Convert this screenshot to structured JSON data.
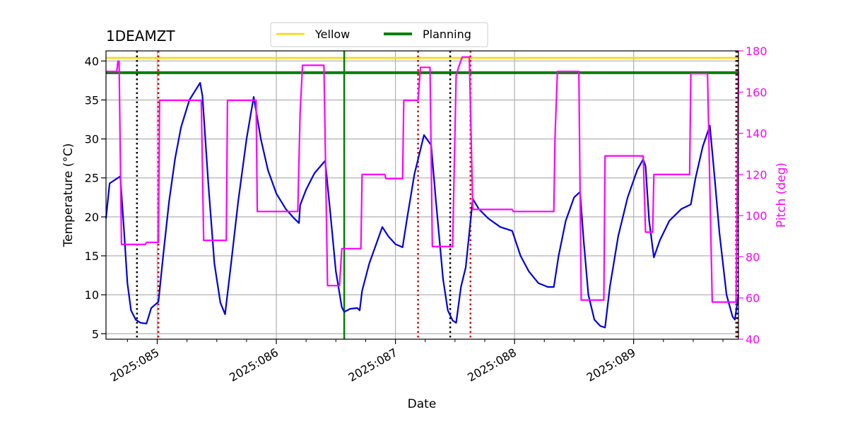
{
  "chart_data": {
    "type": "line",
    "title": "1DEAMZT",
    "xlabel": "Date",
    "ylabel": "Temperature ($^\\circ$C)",
    "ylabel_display": "Temperature (°C)",
    "y2label": "Pitch (deg)",
    "xlim": [
      84.57,
      89.88
    ],
    "ylim": [
      4.3,
      41.3
    ],
    "y2lim": [
      40,
      180
    ],
    "grid": true,
    "legend_position": "top-center",
    "x_ticks": [
      {
        "value": 85,
        "label": "2025:085"
      },
      {
        "value": 86,
        "label": "2025:086"
      },
      {
        "value": 87,
        "label": "2025:087"
      },
      {
        "value": 88,
        "label": "2025:088"
      },
      {
        "value": 89,
        "label": "2025:089"
      }
    ],
    "x_minor_ticks": [
      84.75,
      85.25,
      85.5,
      85.75,
      86.25,
      86.5,
      86.75,
      87.25,
      87.5,
      87.75,
      88.25,
      88.5,
      88.75,
      89.25,
      89.5,
      89.75
    ],
    "y_ticks": [
      5,
      10,
      15,
      20,
      25,
      30,
      35,
      40
    ],
    "y2_ticks": [
      40,
      60,
      80,
      100,
      120,
      140,
      160,
      180
    ],
    "legend": [
      {
        "name": "Yellow",
        "color": "#ffd700"
      },
      {
        "name": "Planning",
        "color": "#008000"
      }
    ],
    "hlines": [
      {
        "name": "Yellow",
        "y": 40.4,
        "color": "#ffd700"
      },
      {
        "name": "Planning",
        "y": 38.5,
        "color": "#008000"
      }
    ],
    "vlines": [
      {
        "x": 84.83,
        "color": "#000000",
        "style": "dotted"
      },
      {
        "x": 85.01,
        "color": "#d00000",
        "style": "dotted"
      },
      {
        "x": 86.57,
        "color": "#008000",
        "style": "solid"
      },
      {
        "x": 87.19,
        "color": "#d00000",
        "style": "dotted"
      },
      {
        "x": 87.46,
        "color": "#000000",
        "style": "dotted"
      },
      {
        "x": 87.63,
        "color": "#d00000",
        "style": "dotted"
      },
      {
        "x": 89.86,
        "color": "#d00000",
        "style": "dotted"
      },
      {
        "x": 89.87,
        "color": "#000000",
        "style": "dotted"
      }
    ],
    "series": [
      {
        "axis": "left",
        "color": "#0000dd",
        "points": [
          [
            84.57,
            19.8
          ],
          [
            84.6,
            24.3
          ],
          [
            84.67,
            25.0
          ],
          [
            84.69,
            25.2
          ],
          [
            84.72,
            18.5
          ],
          [
            84.75,
            11.5
          ],
          [
            84.78,
            8.0
          ],
          [
            84.82,
            6.8
          ],
          [
            84.86,
            6.4
          ],
          [
            84.91,
            6.3
          ],
          [
            84.95,
            8.3
          ],
          [
            85.01,
            9.1
          ],
          [
            85.05,
            15.0
          ],
          [
            85.1,
            22.0
          ],
          [
            85.15,
            27.5
          ],
          [
            85.2,
            31.5
          ],
          [
            85.27,
            35.0
          ],
          [
            85.36,
            37.2
          ],
          [
            85.38,
            35.5
          ],
          [
            85.43,
            24.0
          ],
          [
            85.48,
            14.0
          ],
          [
            85.53,
            9.0
          ],
          [
            85.57,
            7.5
          ],
          [
            85.62,
            14.0
          ],
          [
            85.68,
            22.0
          ],
          [
            85.75,
            30.0
          ],
          [
            85.81,
            35.4
          ],
          [
            85.87,
            30.0
          ],
          [
            85.93,
            26.0
          ],
          [
            86.0,
            23.0
          ],
          [
            86.08,
            21.0
          ],
          [
            86.15,
            19.8
          ],
          [
            86.19,
            19.2
          ],
          [
            86.2,
            21.5
          ],
          [
            86.25,
            23.5
          ],
          [
            86.32,
            25.6
          ],
          [
            86.41,
            27.2
          ],
          [
            86.45,
            21.0
          ],
          [
            86.5,
            13.0
          ],
          [
            86.55,
            8.4
          ],
          [
            86.57,
            7.8
          ],
          [
            86.62,
            8.2
          ],
          [
            86.68,
            8.3
          ],
          [
            86.7,
            8.0
          ],
          [
            86.72,
            10.5
          ],
          [
            86.78,
            14.0
          ],
          [
            86.85,
            17.0
          ],
          [
            86.89,
            18.7
          ],
          [
            86.94,
            17.5
          ],
          [
            87.0,
            16.5
          ],
          [
            87.06,
            16.1
          ],
          [
            87.1,
            20.0
          ],
          [
            87.16,
            25.5
          ],
          [
            87.24,
            30.5
          ],
          [
            87.3,
            29.2
          ],
          [
            87.34,
            22.0
          ],
          [
            87.4,
            12.0
          ],
          [
            87.44,
            8.0
          ],
          [
            87.48,
            6.7
          ],
          [
            87.51,
            6.4
          ],
          [
            87.55,
            11.0
          ],
          [
            87.59,
            13.5
          ],
          [
            87.65,
            22.3
          ],
          [
            87.7,
            21.0
          ],
          [
            87.78,
            19.8
          ],
          [
            87.88,
            18.7
          ],
          [
            87.98,
            18.2
          ],
          [
            88.05,
            15.0
          ],
          [
            88.12,
            13.0
          ],
          [
            88.2,
            11.5
          ],
          [
            88.28,
            11.0
          ],
          [
            88.33,
            11.0
          ],
          [
            88.37,
            15.0
          ],
          [
            88.43,
            19.5
          ],
          [
            88.5,
            22.5
          ],
          [
            88.55,
            23.2
          ],
          [
            88.58,
            17.0
          ],
          [
            88.62,
            10.0
          ],
          [
            88.67,
            6.8
          ],
          [
            88.72,
            6.0
          ],
          [
            88.76,
            5.8
          ],
          [
            88.8,
            11.0
          ],
          [
            88.87,
            17.5
          ],
          [
            88.95,
            22.5
          ],
          [
            89.03,
            26.0
          ],
          [
            89.08,
            27.4
          ],
          [
            89.1,
            26.5
          ],
          [
            89.13,
            19.5
          ],
          [
            89.17,
            14.8
          ],
          [
            89.22,
            17.0
          ],
          [
            89.3,
            19.5
          ],
          [
            89.4,
            21.0
          ],
          [
            89.48,
            21.6
          ],
          [
            89.52,
            25.0
          ],
          [
            89.58,
            29.0
          ],
          [
            89.64,
            31.7
          ],
          [
            89.68,
            25.0
          ],
          [
            89.72,
            18.0
          ],
          [
            89.78,
            10.0
          ],
          [
            89.83,
            7.2
          ],
          [
            89.85,
            6.8
          ],
          [
            89.88,
            10.0
          ]
        ]
      },
      {
        "axis": "right",
        "color": "#ff00ff",
        "points": [
          [
            84.57,
            170.0
          ],
          [
            84.66,
            170.0
          ],
          [
            84.67,
            175.0
          ],
          [
            84.68,
            175.0
          ],
          [
            84.7,
            86.0
          ],
          [
            84.9,
            86.0
          ],
          [
            84.91,
            87.0
          ],
          [
            85.01,
            87.0
          ],
          [
            85.02,
            156.0
          ],
          [
            85.37,
            156.0
          ],
          [
            85.39,
            88.0
          ],
          [
            85.58,
            88.0
          ],
          [
            85.59,
            156.0
          ],
          [
            85.83,
            156.0
          ],
          [
            85.84,
            102.0
          ],
          [
            86.18,
            102.0
          ],
          [
            86.2,
            150.0
          ],
          [
            86.22,
            173.0
          ],
          [
            86.4,
            173.0
          ],
          [
            86.43,
            66.0
          ],
          [
            86.53,
            66.0
          ],
          [
            86.55,
            84.0
          ],
          [
            86.71,
            84.0
          ],
          [
            86.72,
            120.0
          ],
          [
            86.91,
            120.0
          ],
          [
            86.92,
            118.0
          ],
          [
            87.06,
            118.0
          ],
          [
            87.07,
            156.0
          ],
          [
            87.19,
            156.0
          ],
          [
            87.21,
            172.0
          ],
          [
            87.29,
            172.0
          ],
          [
            87.31,
            85.0
          ],
          [
            87.48,
            85.0
          ],
          [
            87.51,
            168.0
          ],
          [
            87.53,
            172.0
          ],
          [
            87.56,
            177.0
          ],
          [
            87.62,
            177.0
          ],
          [
            87.65,
            103.0
          ],
          [
            87.98,
            103.0
          ],
          [
            87.99,
            102.0
          ],
          [
            88.33,
            102.0
          ],
          [
            88.34,
            138.0
          ],
          [
            88.36,
            170.0
          ],
          [
            88.54,
            170.0
          ],
          [
            88.56,
            59.0
          ],
          [
            88.75,
            59.0
          ],
          [
            88.76,
            129.0
          ],
          [
            89.08,
            129.0
          ],
          [
            89.1,
            92.0
          ],
          [
            89.16,
            92.0
          ],
          [
            89.17,
            120.0
          ],
          [
            89.47,
            120.0
          ],
          [
            89.48,
            169.0
          ],
          [
            89.62,
            169.0
          ],
          [
            89.66,
            58.0
          ],
          [
            89.86,
            58.0
          ],
          [
            89.88,
            170.0
          ]
        ]
      }
    ]
  }
}
